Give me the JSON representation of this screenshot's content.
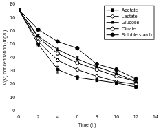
{
  "chart_data": {
    "type": "line",
    "x_label": "Time (h)",
    "y_label": "V(V) concentration (mg/L)",
    "x": [
      0,
      2,
      4,
      6,
      8,
      10,
      12
    ],
    "xlim": [
      0,
      14
    ],
    "xticks": [
      0,
      2,
      4,
      6,
      8,
      10,
      12,
      14
    ],
    "ylim": [
      0,
      80
    ],
    "yticks": [
      0,
      10,
      20,
      30,
      40,
      50,
      60,
      70,
      80
    ],
    "grid": false,
    "legend": "upper right",
    "series": [
      {
        "name": "Acetate",
        "color": "#000000",
        "marker": "filled_square",
        "line_style": "solid",
        "values": [
          76,
          50,
          31,
          25,
          23,
          21,
          18
        ],
        "errors": [
          0.5,
          2,
          2.5,
          1.5,
          1,
          1,
          1
        ]
      },
      {
        "name": "Lactate",
        "color": "#000000",
        "marker": "open_diamond",
        "line_style": "solid",
        "values": [
          76,
          52,
          38,
          31,
          26,
          22,
          20
        ],
        "errors": [
          0.5,
          1,
          1,
          1,
          1,
          1,
          1
        ]
      },
      {
        "name": "Glucose",
        "color": "#000000",
        "marker": "filled_triangle",
        "line_style": "solid",
        "values": [
          76,
          56,
          46,
          39,
          33,
          28,
          22
        ],
        "errors": [
          0.5,
          1,
          1,
          1.5,
          1,
          1,
          1
        ]
      },
      {
        "name": "Citrate",
        "color": "#000000",
        "marker": "open_circle",
        "line_style": "solid",
        "values": [
          76,
          55,
          43,
          36,
          31,
          26,
          22
        ],
        "errors": [
          0.5,
          1,
          1,
          1,
          1,
          1,
          1
        ]
      },
      {
        "name": "Soluble starch",
        "color": "#000000",
        "marker": "filled_circle",
        "line_style": "solid",
        "values": [
          76,
          61,
          52,
          47,
          35,
          31,
          24
        ],
        "errors": [
          0.5,
          1,
          1,
          1,
          1.5,
          1,
          1
        ]
      }
    ]
  }
}
